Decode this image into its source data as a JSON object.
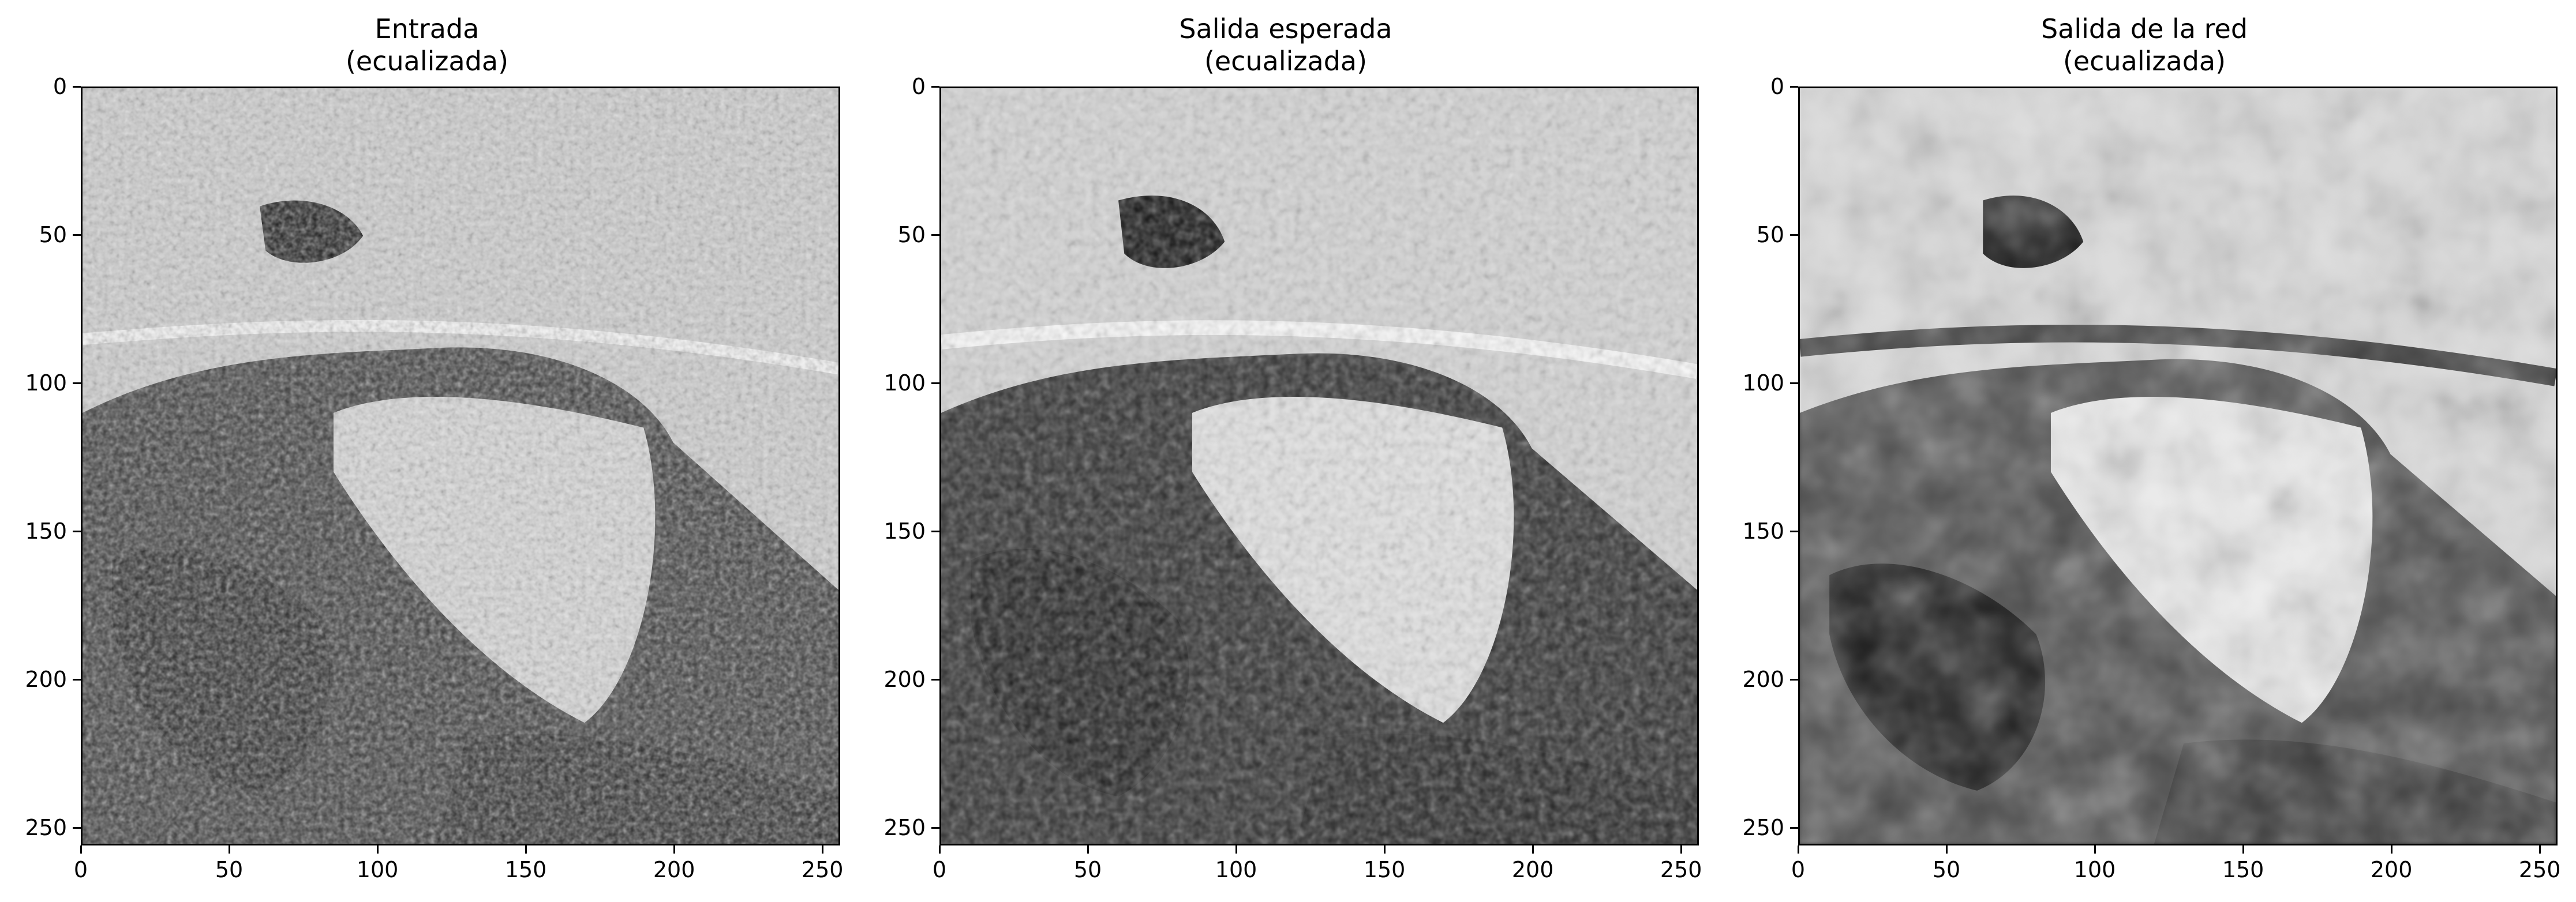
{
  "panels": [
    {
      "title_line1": "Entrada",
      "title_line2": "(ecualizada)",
      "image_desc": "noisy input",
      "xticks": [
        "0",
        "50",
        "100",
        "150",
        "200",
        "250"
      ],
      "yticks": [
        "0",
        "50",
        "100",
        "150",
        "200",
        "250"
      ]
    },
    {
      "title_line1": "Salida esperada",
      "title_line2": "(ecualizada)",
      "image_desc": "expected output",
      "xticks": [
        "0",
        "50",
        "100",
        "150",
        "200",
        "250"
      ],
      "yticks": [
        "0",
        "50",
        "100",
        "150",
        "200",
        "250"
      ]
    },
    {
      "title_line1": "Salida de la red",
      "title_line2": "(ecualizada)",
      "image_desc": "network output",
      "xticks": [
        "0",
        "50",
        "100",
        "150",
        "200",
        "250"
      ],
      "yticks": [
        "0",
        "50",
        "100",
        "150",
        "200",
        "250"
      ]
    }
  ],
  "colors": {
    "dark": "#111111",
    "mid": "#7a7a7a",
    "light": "#eeeeee"
  }
}
